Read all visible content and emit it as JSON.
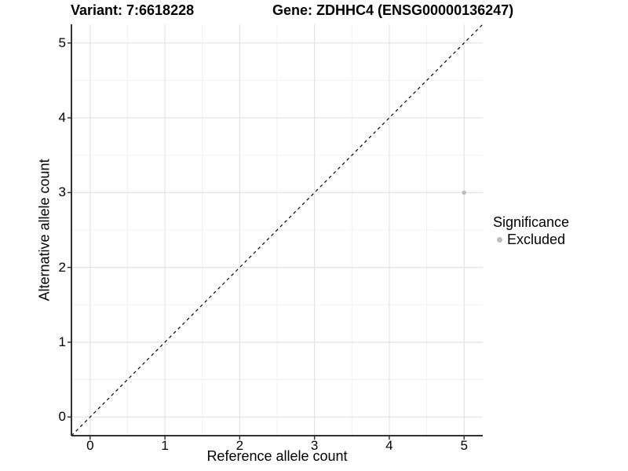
{
  "title": {
    "variant": "Variant: 7:6618228",
    "gene": "Gene: ZDHHC4 (ENSG00000136247)"
  },
  "axes": {
    "x": {
      "label": "Reference allele count",
      "ticks": [
        0,
        1,
        2,
        3,
        4,
        5
      ],
      "minor_ticks": [
        0.5,
        1.5,
        2.5,
        3.5,
        4.5
      ],
      "range": [
        -0.25,
        5.25
      ]
    },
    "y": {
      "label": "Alternative allele count",
      "ticks": [
        0,
        1,
        2,
        3,
        4,
        5
      ],
      "minor_ticks": [
        0.5,
        1.5,
        2.5,
        3.5,
        4.5
      ],
      "range": [
        -0.25,
        5.25
      ]
    }
  },
  "legend": {
    "title": "Significance",
    "items": [
      {
        "label": "Excluded",
        "color": "#bdbdbd"
      }
    ]
  },
  "colors": {
    "background": "#ffffff",
    "panel_background": "#ffffff",
    "grid_major": "#e3e3e3",
    "grid_minor": "#f1f1f1",
    "axis_line": "#333333",
    "tick_mark": "#333333",
    "text": "#000000",
    "point": "#bdbdbd",
    "reference_line": "#000000"
  },
  "chart_data": {
    "type": "scatter",
    "title": "Variant: 7:6618228    Gene: ZDHHC4 (ENSG00000136247)",
    "xlabel": "Reference allele count",
    "ylabel": "Alternative allele count",
    "xlim": [
      -0.25,
      5.25
    ],
    "ylim": [
      -0.25,
      5.25
    ],
    "x_ticks": [
      0,
      1,
      2,
      3,
      4,
      5
    ],
    "y_ticks": [
      0,
      1,
      2,
      3,
      4,
      5
    ],
    "grid": "major+minor",
    "legend_position": "right",
    "legend_title": "Significance",
    "series": [
      {
        "name": "Excluded",
        "color": "#bdbdbd",
        "points": [
          {
            "x": 5,
            "y": 3
          }
        ]
      }
    ],
    "reference_line": {
      "type": "identity",
      "description": "y = x diagonal",
      "style": "dashed",
      "color": "#000000"
    }
  }
}
